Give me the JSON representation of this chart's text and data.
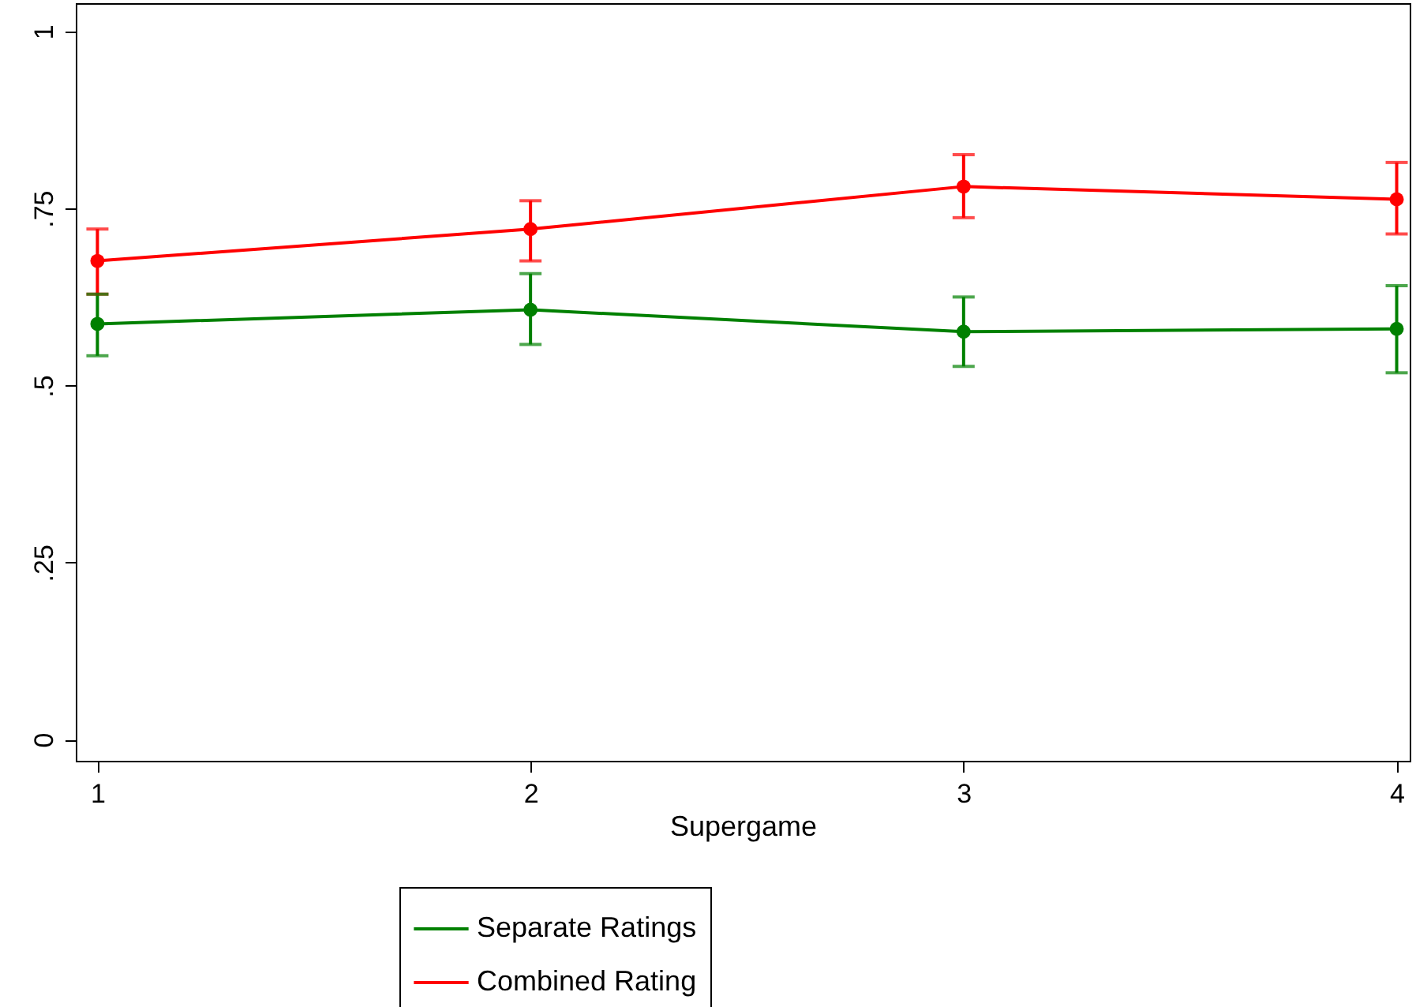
{
  "chart_data": {
    "type": "line",
    "xlabel": "Supergame",
    "x": [
      1,
      2,
      3,
      4
    ],
    "xlim": [
      0.95,
      4.03
    ],
    "xticks": [
      1,
      2,
      3,
      4
    ],
    "ylim": [
      -0.03,
      1.04
    ],
    "yticks": [
      0,
      {
        "value": 0.25,
        "label": ".25"
      },
      {
        "value": 0.5,
        "label": ".5"
      },
      {
        "value": 0.75,
        "label": ".75"
      },
      1
    ],
    "series": [
      {
        "name": "Separate Ratings",
        "color": "#008000",
        "values": [
          0.587,
          0.607,
          0.576,
          0.58
        ],
        "errors": [
          [
            0.542,
            0.629
          ],
          [
            0.558,
            0.658
          ],
          [
            0.527,
            0.625
          ],
          [
            0.518,
            0.641
          ]
        ]
      },
      {
        "name": "Combined Rating",
        "color": "#ff0000",
        "values": [
          0.676,
          0.721,
          0.781,
          0.763
        ],
        "errors": [
          [
            0.629,
            0.721
          ],
          [
            0.676,
            0.761
          ],
          [
            0.737,
            0.826
          ],
          [
            0.714,
            0.815
          ]
        ]
      }
    ],
    "grid": false,
    "legend": "bottom",
    "marker": "circle",
    "line_style": "solid"
  }
}
